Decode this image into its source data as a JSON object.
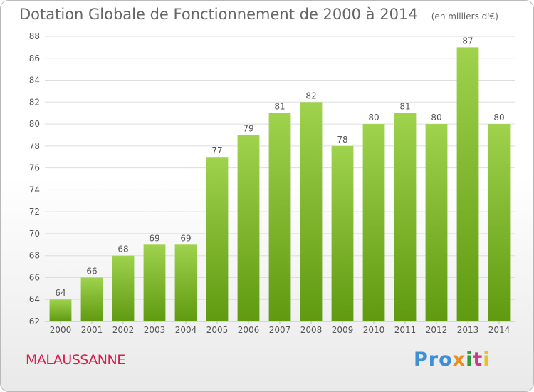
{
  "header": {
    "title": "Dotation Globale de Fonctionnement de 2000 à 2014",
    "subtitle": "(en milliers d'€)"
  },
  "footer": {
    "town": "MALAUSSANNE",
    "logo": [
      "Pro",
      "x",
      "i",
      "t",
      "i"
    ]
  },
  "colors": {
    "bar_top": "#9fd24d",
    "bar_bottom": "#5f9a10",
    "grid": "#dddddd",
    "axis_text": "#555555"
  },
  "chart_data": {
    "type": "bar",
    "title": "Dotation Globale de Fonctionnement de 2000 à 2014",
    "subtitle": "(en milliers d'€)",
    "categories": [
      "2000",
      "2001",
      "2002",
      "2003",
      "2004",
      "2005",
      "2006",
      "2007",
      "2008",
      "2009",
      "2010",
      "2011",
      "2012",
      "2013",
      "2014"
    ],
    "values": [
      64,
      66,
      68,
      69,
      69,
      77,
      79,
      81,
      82,
      78,
      80,
      81,
      80,
      87,
      80
    ],
    "ylim": [
      62,
      88
    ],
    "yticks": [
      62,
      64,
      66,
      68,
      70,
      72,
      74,
      76,
      78,
      80,
      82,
      84,
      86,
      88
    ],
    "grid": true,
    "data_labels": true
  }
}
